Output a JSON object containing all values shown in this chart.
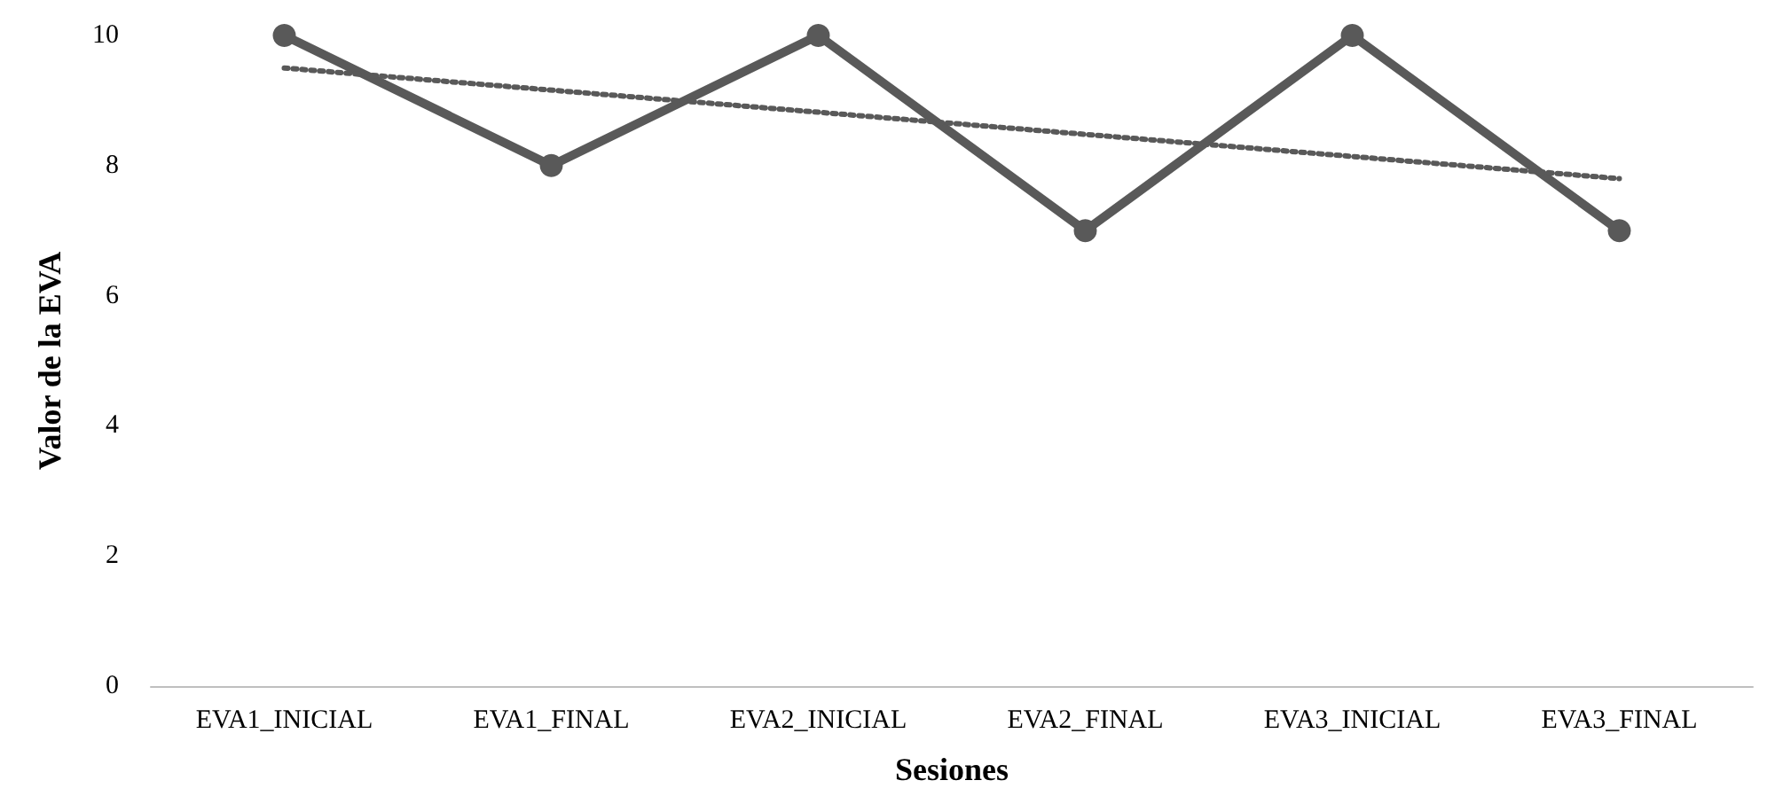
{
  "chart_data": {
    "type": "line",
    "xlabel": "Sesiones",
    "ylabel": "Valor de la EVA",
    "categories": [
      "EVA1_INICIAL",
      "EVA1_FINAL",
      "EVA2_INICIAL",
      "EVA2_FINAL",
      "EVA3_INICIAL",
      "EVA3_FINAL"
    ],
    "series": [
      {
        "color": "#595959",
        "values": [
          10,
          8,
          10,
          7,
          10,
          7
        ],
        "marker": "circle",
        "line_style": "solid"
      },
      {
        "type": "line",
        "color": "#595959",
        "x": [
          "EVA1_INICIAL",
          "EVA3_FINAL"
        ],
        "values": [
          9.5,
          7.8
        ],
        "marker": "none",
        "line_style": "dotted"
      }
    ],
    "ylim": [
      0,
      10
    ],
    "yticks": [
      0,
      2,
      4,
      6,
      8,
      10
    ],
    "grid": false
  }
}
